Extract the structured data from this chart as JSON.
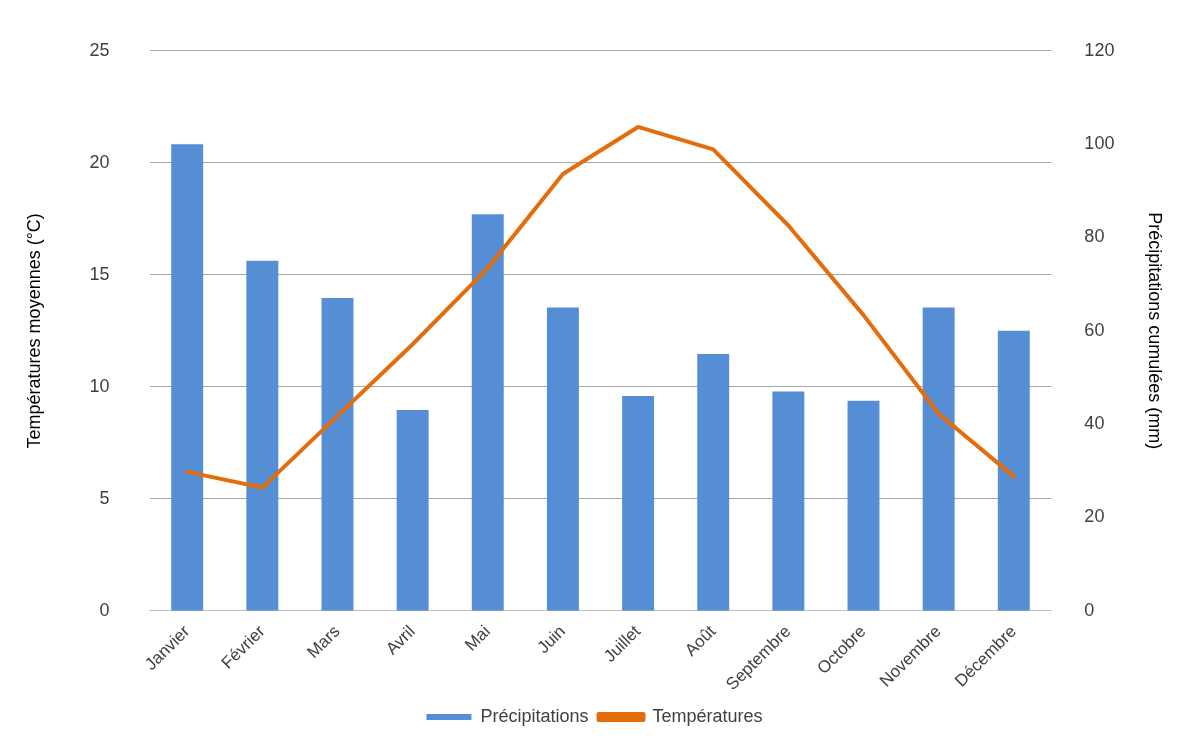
{
  "chart_data": {
    "type": "bar",
    "ylabel": "Températures moyennes (°C)",
    "y2label": "Précipitations cumulées (mm)",
    "categories": [
      "Janvier",
      "Février",
      "Mars",
      "Avril",
      "Mai",
      "Juin",
      "Juillet",
      "Août",
      "Septembre",
      "Octobre",
      "Novembre",
      "Décembre"
    ],
    "series": [
      {
        "name": "Précipitations",
        "axis": "y2",
        "color": "#558ed5",
        "values": [
          100,
          75,
          67,
          43,
          85,
          65,
          46,
          55,
          47,
          45,
          65,
          60
        ]
      },
      {
        "name": "Températures",
        "type": "line",
        "color": "#e46c0a",
        "values": [
          6.2,
          5.5,
          8.7,
          11.9,
          15.3,
          19.5,
          21.6,
          20.6,
          17.2,
          13.2,
          8.8,
          6.0
        ]
      }
    ],
    "ylim": [
      0,
      25
    ],
    "yticks": [
      0,
      5,
      10,
      15,
      20,
      25
    ],
    "y2lim": [
      0,
      120
    ],
    "y2ticks": [
      0,
      20,
      40,
      60,
      80,
      100,
      120
    ],
    "grid": "y",
    "legend": "bottom",
    "marker": "none",
    "line_style": "solid"
  }
}
